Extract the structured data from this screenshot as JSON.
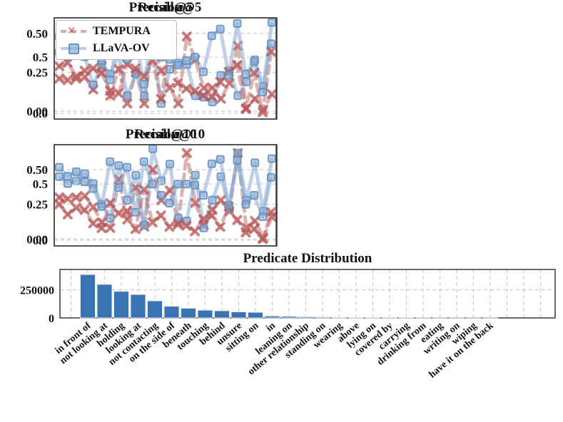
{
  "style": {
    "tempura_color": "#C06565",
    "llava_color": "#7FA9D6",
    "bar_color": "#3A73B1",
    "grid_color": "#CCCCCC",
    "frame_color": "#3A3A3A",
    "text_color": "#111111"
  },
  "chart_data": [
    {
      "id": "recall_at_5",
      "type": "line",
      "title": "Recall@5",
      "ylim": [
        -0.05,
        0.6
      ],
      "yticks": [
        0,
        0.25,
        0.5
      ],
      "ytick_labels": [
        "0.00",
        "0.25",
        "0.50"
      ],
      "grid": "horizontal-dashed",
      "legend_position": "upper-left",
      "series": [
        {
          "name": "TEMPURA",
          "marker": "x",
          "linestyle": "dashed",
          "values": [
            0.21,
            0.2,
            0.21,
            0.22,
            0.14,
            0.29,
            0.1,
            0.27,
            0.05,
            0.25,
            0.05,
            0.44,
            0.26,
            0.15,
            0.05,
            0.48,
            0.33,
            0.15,
            0.15,
            0.08,
            0.18,
            0.42,
            0.02,
            0.08,
            0.01,
            0.11
          ]
        },
        {
          "name": "LLaVA-OV",
          "marker": "square",
          "linestyle": "solid",
          "values": [
            0.38,
            0.35,
            0.4,
            0.35,
            0.17,
            0.3,
            0.24,
            0.36,
            0.1,
            0.24,
            0.1,
            0.43,
            0.05,
            0.27,
            0.31,
            0.3,
            0.1,
            0.09,
            0.06,
            0.23,
            0.26,
            0.1,
            0.19,
            0.33,
            0.16,
            0.57
          ]
        }
      ]
    },
    {
      "id": "precision_at_5",
      "type": "line",
      "title": "Precision@5",
      "ylim": [
        -0.05,
        0.85
      ],
      "yticks": [
        0,
        0.5
      ],
      "ytick_labels": [
        "0.0",
        "0.5"
      ],
      "grid": "horizontal-dashed",
      "series": [
        {
          "name": "TEMPURA",
          "marker": "x",
          "linestyle": "dashed",
          "values": [
            0.42,
            0.45,
            0.33,
            0.38,
            0.4,
            0.36,
            0.2,
            0.18,
            0.44,
            0.4,
            0.33,
            0.47,
            0.13,
            0.57,
            0.27,
            0.22,
            0.2,
            0.16,
            0.15,
            0.28,
            0.37,
            0.43,
            0.04,
            0.36,
            0.01,
            0.55
          ]
        },
        {
          "name": "LLaVA-OV",
          "marker": "square",
          "linestyle": "solid",
          "values": [
            0.68,
            0.58,
            0.62,
            0.63,
            0.55,
            0.47,
            0.3,
            0.7,
            0.48,
            0.67,
            0.26,
            0.73,
            0.5,
            0.48,
            0.43,
            0.47,
            0.5,
            0.37,
            0.69,
            0.75,
            0.34,
            0.8,
            0.35,
            0.46,
            0.19,
            0.62
          ]
        }
      ]
    },
    {
      "id": "recall_at_10",
      "type": "line",
      "title": "Recall@10",
      "ylim": [
        -0.05,
        0.68
      ],
      "yticks": [
        0,
        0.25,
        0.5
      ],
      "ytick_labels": [
        "0.00",
        "0.25",
        "0.50"
      ],
      "grid": "horizontal-dashed",
      "series": [
        {
          "name": "TEMPURA",
          "marker": "x",
          "linestyle": "dashed",
          "values": [
            0.3,
            0.29,
            0.3,
            0.31,
            0.23,
            0.12,
            0.08,
            0.43,
            0.14,
            0.37,
            0.09,
            0.5,
            0.28,
            0.35,
            0.12,
            0.62,
            0.26,
            0.1,
            0.21,
            0.28,
            0.2,
            0.62,
            0.08,
            0.13,
            0.01,
            0.16
          ]
        },
        {
          "name": "LLaVA-OV",
          "marker": "square",
          "linestyle": "solid",
          "values": [
            0.45,
            0.4,
            0.42,
            0.47,
            0.4,
            0.25,
            0.15,
            0.53,
            0.28,
            0.46,
            0.1,
            0.65,
            0.42,
            0.54,
            0.15,
            0.13,
            0.46,
            0.08,
            0.28,
            0.45,
            0.22,
            0.62,
            0.28,
            0.55,
            0.2,
            0.58
          ]
        }
      ]
    },
    {
      "id": "precision_at_10",
      "type": "line",
      "title": "Precision@10",
      "ylim": [
        -0.05,
        0.85
      ],
      "yticks": [
        0,
        0.5
      ],
      "ytick_labels": [
        "0.0",
        "0.5"
      ],
      "grid": "horizontal-dashed",
      "series": [
        {
          "name": "TEMPURA",
          "marker": "x",
          "linestyle": "dashed",
          "values": [
            0.32,
            0.23,
            0.29,
            0.27,
            0.15,
            0.11,
            0.33,
            0.24,
            0.26,
            0.1,
            0.45,
            0.16,
            0.22,
            0.12,
            0.14,
            0.13,
            0.08,
            0.19,
            0.22,
            0.12,
            0.3,
            0.18,
            0.07,
            0.1,
            0.01,
            0.25
          ]
        },
        {
          "name": "LLaVA-OV",
          "marker": "square",
          "linestyle": "solid",
          "values": [
            0.65,
            0.57,
            0.61,
            0.52,
            0.46,
            0.3,
            0.7,
            0.47,
            0.65,
            0.25,
            0.7,
            0.5,
            0.4,
            0.33,
            0.5,
            0.5,
            0.49,
            0.4,
            0.68,
            0.72,
            0.31,
            0.71,
            0.32,
            0.4,
            0.21,
            0.56
          ]
        }
      ]
    },
    {
      "id": "predicate_distribution",
      "type": "bar",
      "title": "Predicate Distribution",
      "ylim": [
        0,
        430000
      ],
      "yticks": [
        0,
        250000
      ],
      "ytick_labels": [
        "0",
        "250000"
      ],
      "grid": "both-dashed",
      "xlabel_rotation": -40,
      "categories": [
        "in front of",
        "not looking at",
        "holding",
        "looking at",
        "not contacting",
        "on the side of",
        "beneath",
        "touching",
        "behind",
        "unsure",
        "sitting on",
        "in",
        "leaning on",
        "other relationship",
        "standing on",
        "wearing",
        "above",
        "lying on",
        "covered by",
        "carrying",
        "drinking from",
        "eating",
        "writing on",
        "wiping",
        "have it on the back"
      ],
      "values": [
        385000,
        298000,
        236000,
        208000,
        152000,
        104000,
        86000,
        69000,
        64000,
        54000,
        50000,
        17000,
        14000,
        10000,
        8000,
        6000,
        4500,
        3500,
        3000,
        2500,
        2000,
        1500,
        1200,
        900,
        600
      ]
    }
  ]
}
